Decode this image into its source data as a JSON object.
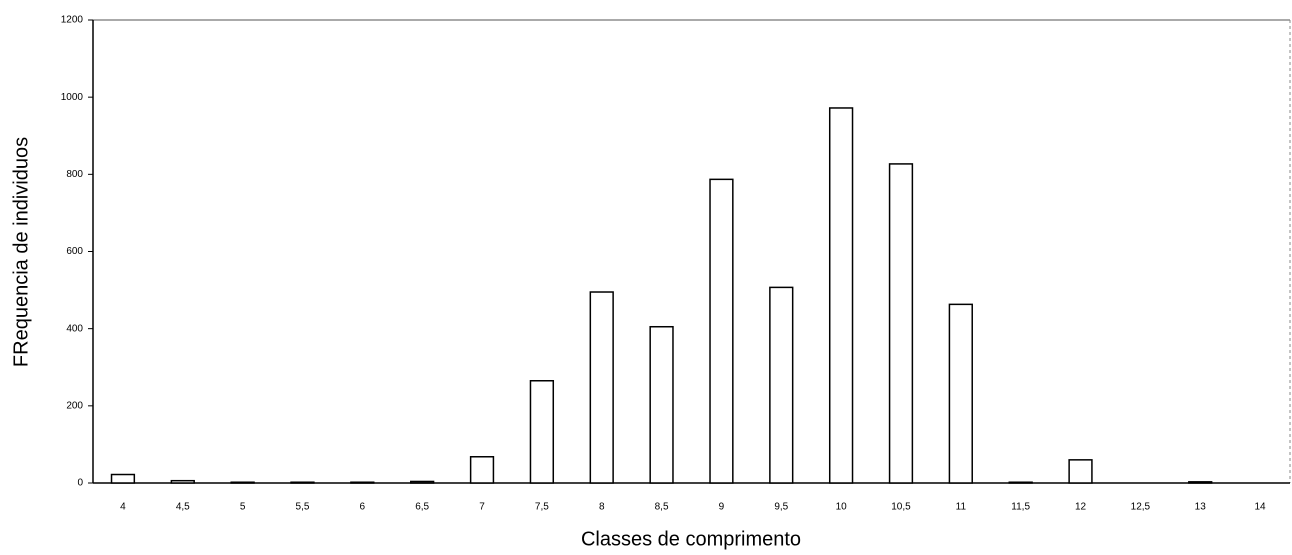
{
  "chart_data": {
    "type": "bar",
    "x_label": "Classes de comprimento",
    "y_label": "FRequencia de individuos",
    "categories": [
      "4",
      "4,5",
      "5",
      "5,5",
      "6",
      "6,5",
      "7",
      "7,5",
      "8",
      "8,5",
      "9",
      "9,5",
      "10",
      "10,5",
      "11",
      "11,5",
      "12",
      "12,5",
      "13",
      "14"
    ],
    "values": [
      22,
      6,
      2,
      2,
      2,
      4,
      68,
      265,
      495,
      405,
      787,
      507,
      972,
      827,
      463,
      2,
      60,
      0,
      3,
      0
    ],
    "color": "#ffffff",
    "ylim": [
      0,
      1200
    ],
    "yticks": [
      0,
      200,
      400,
      600,
      800,
      1000,
      1200
    ],
    "grid": false
  }
}
